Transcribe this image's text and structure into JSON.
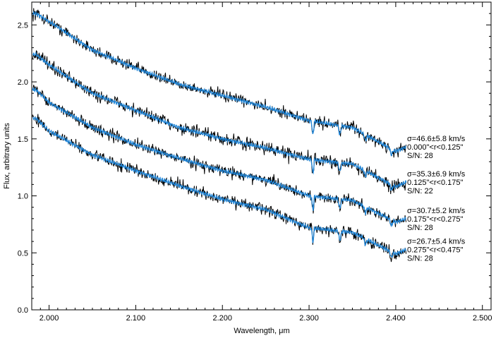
{
  "chart_data": {
    "type": "line",
    "xlabel": "Wavelength, μm",
    "ylabel": "Flux, arbitrary units",
    "xlim": [
      1.98,
      2.51
    ],
    "ylim": [
      0.0,
      2.7
    ],
    "x_ticks": [
      "2.000",
      "2.100",
      "2.200",
      "2.300",
      "2.400",
      "2.500"
    ],
    "y_ticks": [
      "0.0",
      "0.5",
      "1.0",
      "1.5",
      "2.0",
      "2.5"
    ],
    "x_tick_values": [
      2.0,
      2.1,
      2.2,
      2.3,
      2.4,
      2.5
    ],
    "y_tick_values": [
      0.0,
      0.5,
      1.0,
      1.5,
      2.0,
      2.5
    ],
    "grid": false,
    "colors": {
      "observed": "#000000",
      "model": "#1f86d9"
    },
    "x_range_data": [
      1.981,
      2.412
    ],
    "spectra": [
      {
        "sigma_text": "σ=46.6±5.8 km/s",
        "radius_text": "0.000\"<r<0.125\"",
        "sn_text": "S/N: 28",
        "x": [
          1.985,
          2.0,
          2.05,
          2.1,
          2.15,
          2.2,
          2.25,
          2.3,
          2.35,
          2.4,
          2.412
        ],
        "y": [
          2.6,
          2.53,
          2.28,
          2.12,
          1.98,
          1.88,
          1.78,
          1.66,
          1.6,
          1.39,
          1.43
        ],
        "noise": 0.05
      },
      {
        "sigma_text": "σ=35.3±6.9 km/s",
        "radius_text": "0.125\"<r<0.175\"",
        "sn_text": "S/N: 22",
        "x": [
          1.985,
          2.0,
          2.05,
          2.1,
          2.15,
          2.2,
          2.25,
          2.3,
          2.35,
          2.4,
          2.412
        ],
        "y": [
          2.24,
          2.15,
          1.9,
          1.75,
          1.6,
          1.5,
          1.42,
          1.32,
          1.28,
          1.08,
          1.12
        ],
        "noise": 0.06
      },
      {
        "sigma_text": "σ=30.7±5.2 km/s",
        "radius_text": "0.175\"<r<0.275\"",
        "sn_text": "S/N: 28",
        "x": [
          1.985,
          2.0,
          2.05,
          2.1,
          2.15,
          2.2,
          2.25,
          2.3,
          2.35,
          2.4,
          2.412
        ],
        "y": [
          1.93,
          1.82,
          1.6,
          1.45,
          1.33,
          1.22,
          1.14,
          1.0,
          0.96,
          0.77,
          0.8
        ],
        "noise": 0.05
      },
      {
        "sigma_text": "σ=26.7±5.4 km/s",
        "radius_text": "0.275\"<r<0.475\"",
        "sn_text": "S/N: 28",
        "x": [
          1.985,
          2.0,
          2.05,
          2.1,
          2.15,
          2.2,
          2.25,
          2.3,
          2.35,
          2.4,
          2.412
        ],
        "y": [
          1.68,
          1.57,
          1.36,
          1.22,
          1.09,
          0.97,
          0.88,
          0.72,
          0.68,
          0.49,
          0.53
        ],
        "noise": 0.05
      }
    ]
  }
}
